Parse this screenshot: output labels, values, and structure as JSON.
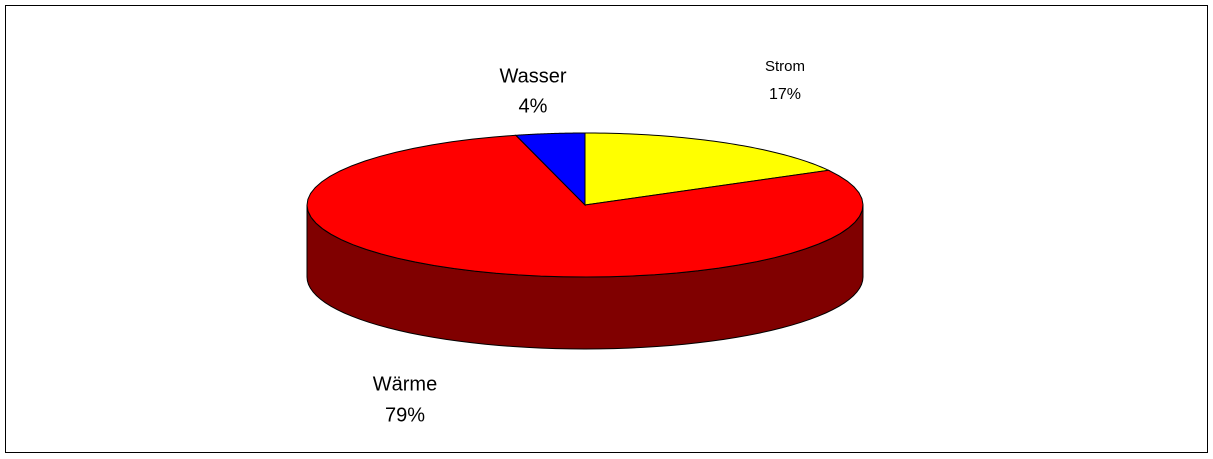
{
  "chart_data": {
    "type": "pie",
    "style": "3d",
    "categories": [
      "Strom",
      "Wärme",
      "Wasser"
    ],
    "values": [
      17,
      79,
      4
    ],
    "value_labels": [
      "17%",
      "79%",
      "4%"
    ],
    "colors": [
      "#ffff00",
      "#ff0000",
      "#0000ff"
    ]
  }
}
